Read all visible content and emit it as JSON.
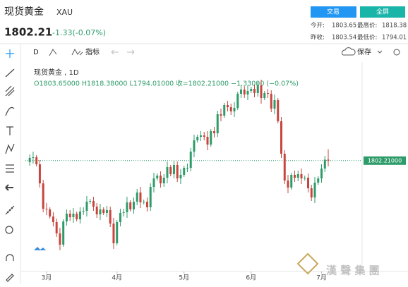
{
  "header": {
    "name": "现货黄金",
    "symbol": "XAU",
    "price": "1802.21",
    "change": "-1.33(-0.07%)",
    "buttons": [
      "交易",
      "全屏"
    ],
    "stats": [
      [
        "今开:",
        "1803.65",
        "最高价:",
        "1818.38"
      ],
      [
        "昨收:",
        "1803.54",
        "最低价:",
        "1794.01"
      ]
    ]
  },
  "toolbar": {
    "interval": "D",
    "indicators": "指标",
    "save": "保存"
  },
  "chart_data": {
    "type": "candlestick",
    "title": "现货黄金 , 1D",
    "ohlc_label": "O1803.65000  H1818.38000  L1794.01000  收=1802.21000  −1.33000 (−0.07%)",
    "open": [
      1800,
      1806,
      1807,
      1797,
      1770,
      1734,
      1733,
      1723,
      1715,
      1699,
      1683,
      1716,
      1727,
      1722,
      1727,
      1719,
      1730,
      1731,
      1744,
      1745,
      1737,
      1726,
      1733,
      1728,
      1732,
      1713,
      1685,
      1715,
      1728,
      1729,
      1743,
      1733,
      1744,
      1757,
      1743,
      1744,
      1736,
      1765,
      1777,
      1781,
      1770,
      1778,
      1793,
      1783,
      1796,
      1777,
      1782,
      1792,
      1792,
      1815,
      1831,
      1836,
      1838,
      1836,
      1825,
      1844,
      1841,
      1868,
      1866,
      1881,
      1878,
      1872,
      1877,
      1897,
      1903,
      1896,
      1901,
      1904,
      1898,
      1909,
      1891,
      1898,
      1897,
      1876,
      1888,
      1858,
      1812,
      1774,
      1764,
      1782,
      1778,
      1783,
      1777,
      1778,
      1763,
      1750,
      1771,
      1777,
      1791,
      1803.65
    ],
    "high": [
      1811,
      1815,
      1810,
      1803,
      1775,
      1742,
      1736,
      1729,
      1720,
      1707,
      1719,
      1733,
      1732,
      1735,
      1730,
      1736,
      1736,
      1752,
      1748,
      1751,
      1742,
      1741,
      1736,
      1738,
      1737,
      1721,
      1718,
      1734,
      1734,
      1751,
      1746,
      1750,
      1762,
      1765,
      1747,
      1750,
      1770,
      1785,
      1784,
      1787,
      1783,
      1801,
      1796,
      1802,
      1801,
      1790,
      1795,
      1798,
      1820,
      1839,
      1839,
      1844,
      1843,
      1844,
      1847,
      1850,
      1873,
      1876,
      1884,
      1887,
      1883,
      1885,
      1900,
      1909,
      1908,
      1909,
      1907,
      1910,
      1914,
      1917,
      1901,
      1904,
      1902,
      1896,
      1891,
      1864,
      1817,
      1782,
      1785,
      1788,
      1788,
      1791,
      1781,
      1784,
      1768,
      1779,
      1780,
      1797,
      1809,
      1818.38
    ],
    "low": [
      1795,
      1798,
      1794,
      1764,
      1729,
      1725,
      1720,
      1709,
      1694,
      1675,
      1680,
      1710,
      1717,
      1714,
      1716,
      1713,
      1725,
      1723,
      1741,
      1731,
      1721,
      1718,
      1725,
      1722,
      1708,
      1677,
      1682,
      1709,
      1723,
      1721,
      1730,
      1727,
      1739,
      1735,
      1740,
      1730,
      1731,
      1757,
      1774,
      1764,
      1765,
      1770,
      1780,
      1777,
      1772,
      1769,
      1779,
      1786,
      1787,
      1807,
      1828,
      1830,
      1831,
      1817,
      1822,
      1835,
      1836,
      1858,
      1863,
      1872,
      1867,
      1864,
      1874,
      1891,
      1891,
      1888,
      1898,
      1892,
      1893,
      1883,
      1888,
      1891,
      1871,
      1868,
      1855,
      1806,
      1769,
      1756,
      1761,
      1772,
      1773,
      1769,
      1774,
      1757,
      1745,
      1742,
      1768,
      1771,
      1786,
      1794.01
    ],
    "close": [
      1806,
      1807,
      1797,
      1770,
      1734,
      1733,
      1723,
      1715,
      1699,
      1683,
      1716,
      1727,
      1722,
      1727,
      1719,
      1730,
      1731,
      1744,
      1745,
      1737,
      1726,
      1733,
      1728,
      1732,
      1713,
      1685,
      1715,
      1728,
      1729,
      1743,
      1733,
      1744,
      1757,
      1743,
      1744,
      1736,
      1765,
      1777,
      1781,
      1770,
      1778,
      1793,
      1783,
      1796,
      1777,
      1782,
      1792,
      1792,
      1815,
      1831,
      1836,
      1838,
      1836,
      1825,
      1844,
      1841,
      1868,
      1866,
      1881,
      1878,
      1872,
      1877,
      1897,
      1903,
      1896,
      1901,
      1904,
      1898,
      1909,
      1891,
      1898,
      1897,
      1876,
      1888,
      1858,
      1812,
      1774,
      1764,
      1782,
      1778,
      1783,
      1777,
      1778,
      1763,
      1750,
      1771,
      1777,
      1791,
      1803.54,
      1802.21
    ],
    "xlim": [
      -1.3,
      99.1
    ],
    "ylim": [
      1645,
      1942
    ],
    "xticks": [
      {
        "value": 5,
        "label": "3月"
      },
      {
        "value": 26,
        "label": "4月"
      },
      {
        "value": 46,
        "label": "5月"
      },
      {
        "value": 66,
        "label": "6月"
      },
      {
        "value": 87,
        "label": "7月"
      }
    ],
    "last_price": {
      "value": 1802.21,
      "label": "1802.21000"
    },
    "up_color": "#2e9c6a",
    "down_color": "#c8453e",
    "watermark": "漢 聲 集 團"
  }
}
